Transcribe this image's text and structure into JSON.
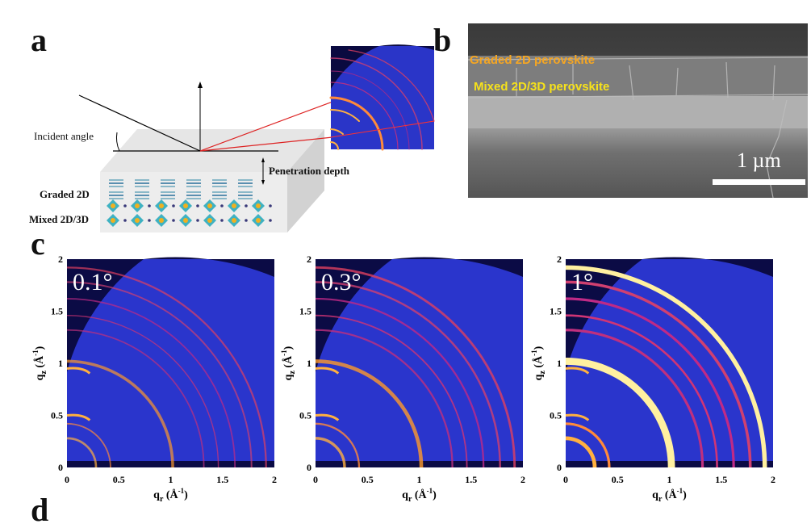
{
  "panel_labels": {
    "a": "a",
    "b": "b",
    "c": "c",
    "d_partial": "d"
  },
  "panel_a": {
    "incident_angle": "Incident angle",
    "penetration_depth": "Penetration depth",
    "graded_2d": "Graded 2D",
    "mixed_2d3d": "Mixed 2D/3D"
  },
  "panel_b": {
    "graded_label": "Graded 2D perovskite",
    "mixed_label": "Mixed 2D/3D perovskite",
    "scale_bar": "1 µm",
    "colors": {
      "graded": "#f5a623",
      "mixed": "#f7e21a"
    }
  },
  "panel_c": {
    "xlabel_main": "q",
    "xlabel_sub": "r",
    "xlabel_unit": " (Å",
    "unit_exp": "-1",
    "unit_close": ")",
    "ylabel_main": "q",
    "ylabel_sub": "z",
    "x_ticks": [
      "0",
      "0.5",
      "1",
      "1.5",
      "2"
    ],
    "y_ticks": [
      "0",
      "0.5",
      "1",
      "1.5",
      "2"
    ],
    "plots": [
      {
        "angle": "0.1°"
      },
      {
        "angle": "0.3°"
      },
      {
        "angle": "1°"
      }
    ]
  }
}
